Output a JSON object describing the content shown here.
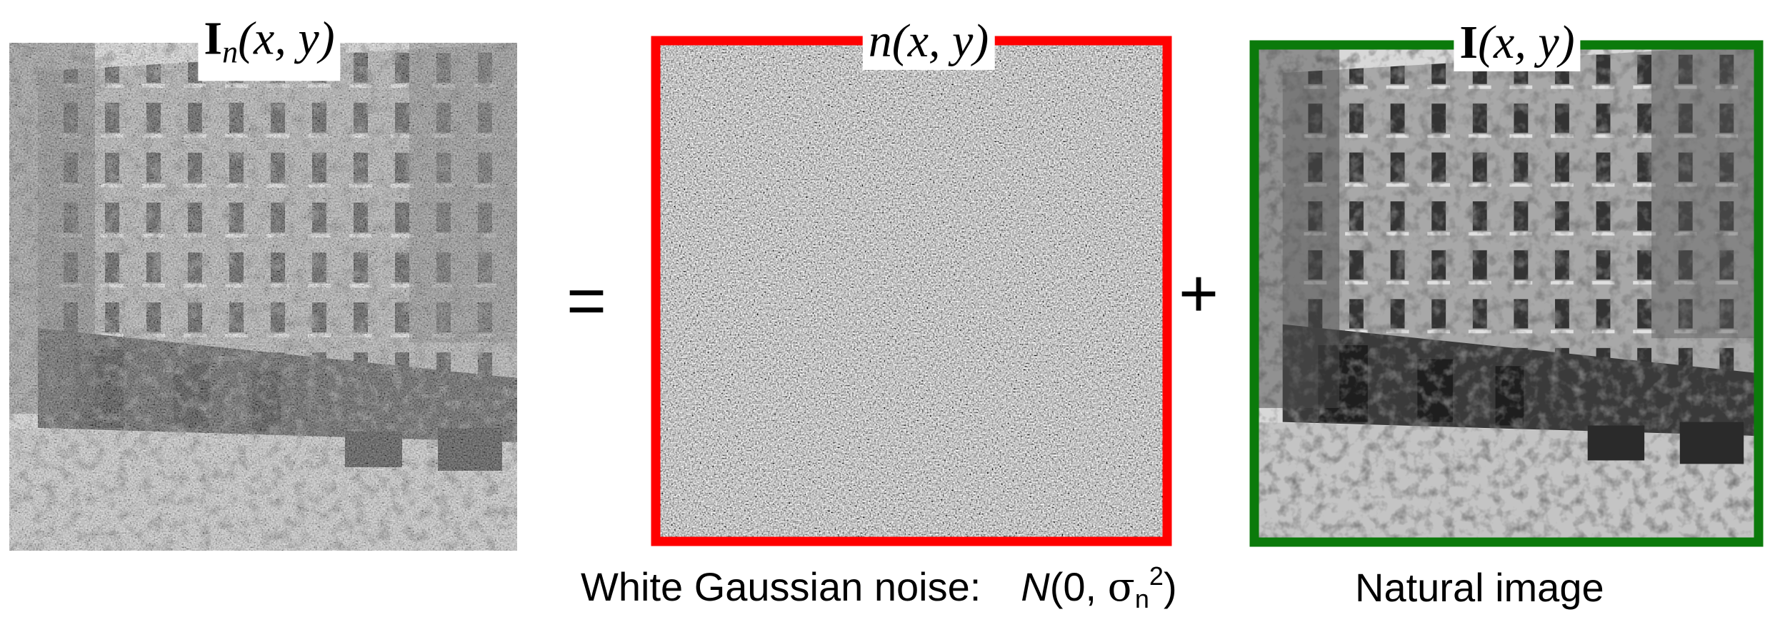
{
  "panels": [
    {
      "label": {
        "symbol": "I",
        "subscript": "n",
        "args": "(x, y)"
      }
    },
    {
      "label": {
        "symbol": "n",
        "args": "(x, y)"
      }
    },
    {
      "label": {
        "symbol": "I",
        "args": "(x, y)"
      }
    }
  ],
  "operators": [
    "=",
    "+"
  ],
  "captions": [
    {
      "text": "White Gaussian noise:",
      "formula": {
        "symbol": "N",
        "open": "(0, ",
        "sigma": "σ",
        "subscript": "n",
        "superscript": "2",
        "close": ")"
      }
    },
    {
      "text": "Natural image"
    }
  ]
}
